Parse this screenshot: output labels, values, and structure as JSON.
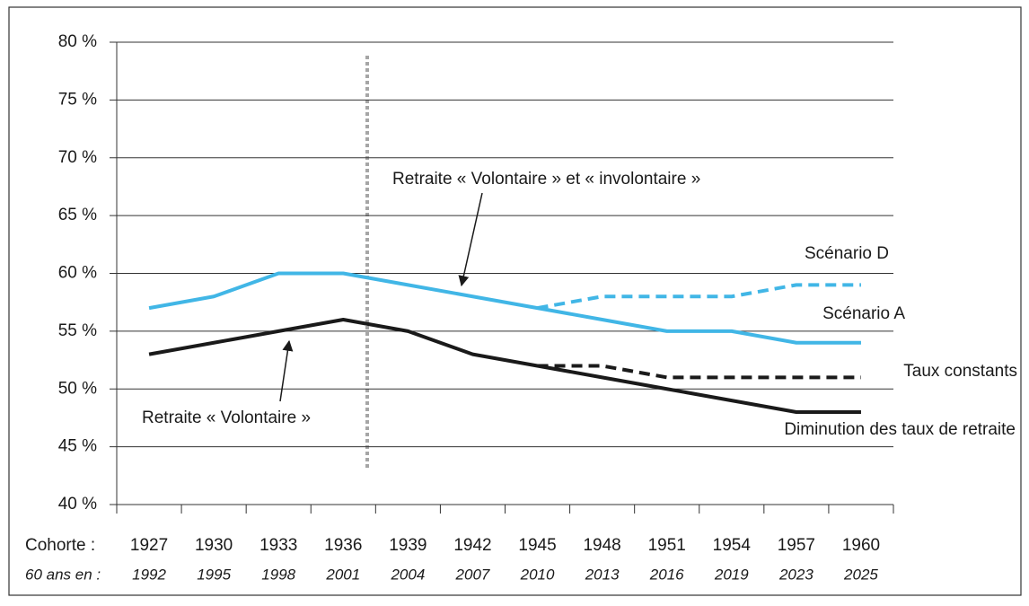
{
  "chart_data": {
    "type": "line",
    "categories": [
      "1927",
      "1930",
      "1933",
      "1936",
      "1939",
      "1942",
      "1945",
      "1948",
      "1951",
      "1954",
      "1957",
      "1960"
    ],
    "x_label": "Cohorte :",
    "x2_label": "60 ans en :",
    "x2_categories": [
      "1992",
      "1995",
      "1998",
      "2001",
      "2004",
      "2007",
      "2010",
      "2013",
      "2016",
      "2019",
      "2023",
      "2025"
    ],
    "series": [
      {
        "name": "Scénario D",
        "color": "#41b6e6",
        "dashed": true,
        "values": [
          null,
          null,
          null,
          null,
          null,
          null,
          57,
          58,
          58,
          58,
          59,
          59
        ]
      },
      {
        "name": "Scénario A",
        "color": "#41b6e6",
        "dashed": false,
        "values": [
          57,
          58,
          60,
          60,
          59,
          58,
          57,
          56,
          55,
          55,
          54,
          54
        ]
      },
      {
        "name": "Taux constants",
        "color": "#1a1a1a",
        "dashed": true,
        "values": [
          null,
          null,
          null,
          null,
          null,
          null,
          52,
          52,
          51,
          51,
          51,
          51
        ]
      },
      {
        "name": "Diminution des taux de retraite",
        "color": "#1a1a1a",
        "dashed": false,
        "values": [
          53,
          54,
          55,
          56,
          55,
          53,
          52,
          51,
          50,
          49,
          48,
          48
        ]
      }
    ],
    "annotations": [
      "Retraite « Volontaire » et « involontaire »",
      "Retraite « Volontaire »"
    ],
    "ylim": [
      40,
      80
    ],
    "yticks": [
      {
        "value": 40,
        "label": "40 %"
      },
      {
        "value": 45,
        "label": "45 %"
      },
      {
        "value": 50,
        "label": "50 %"
      },
      {
        "value": 55,
        "label": "55 %"
      },
      {
        "value": 60,
        "label": "60 %"
      },
      {
        "value": 65,
        "label": "65 %"
      },
      {
        "value": 70,
        "label": "70 %"
      },
      {
        "value": 75,
        "label": "75 %"
      },
      {
        "value": 80,
        "label": "80 %"
      }
    ],
    "grid": true
  }
}
